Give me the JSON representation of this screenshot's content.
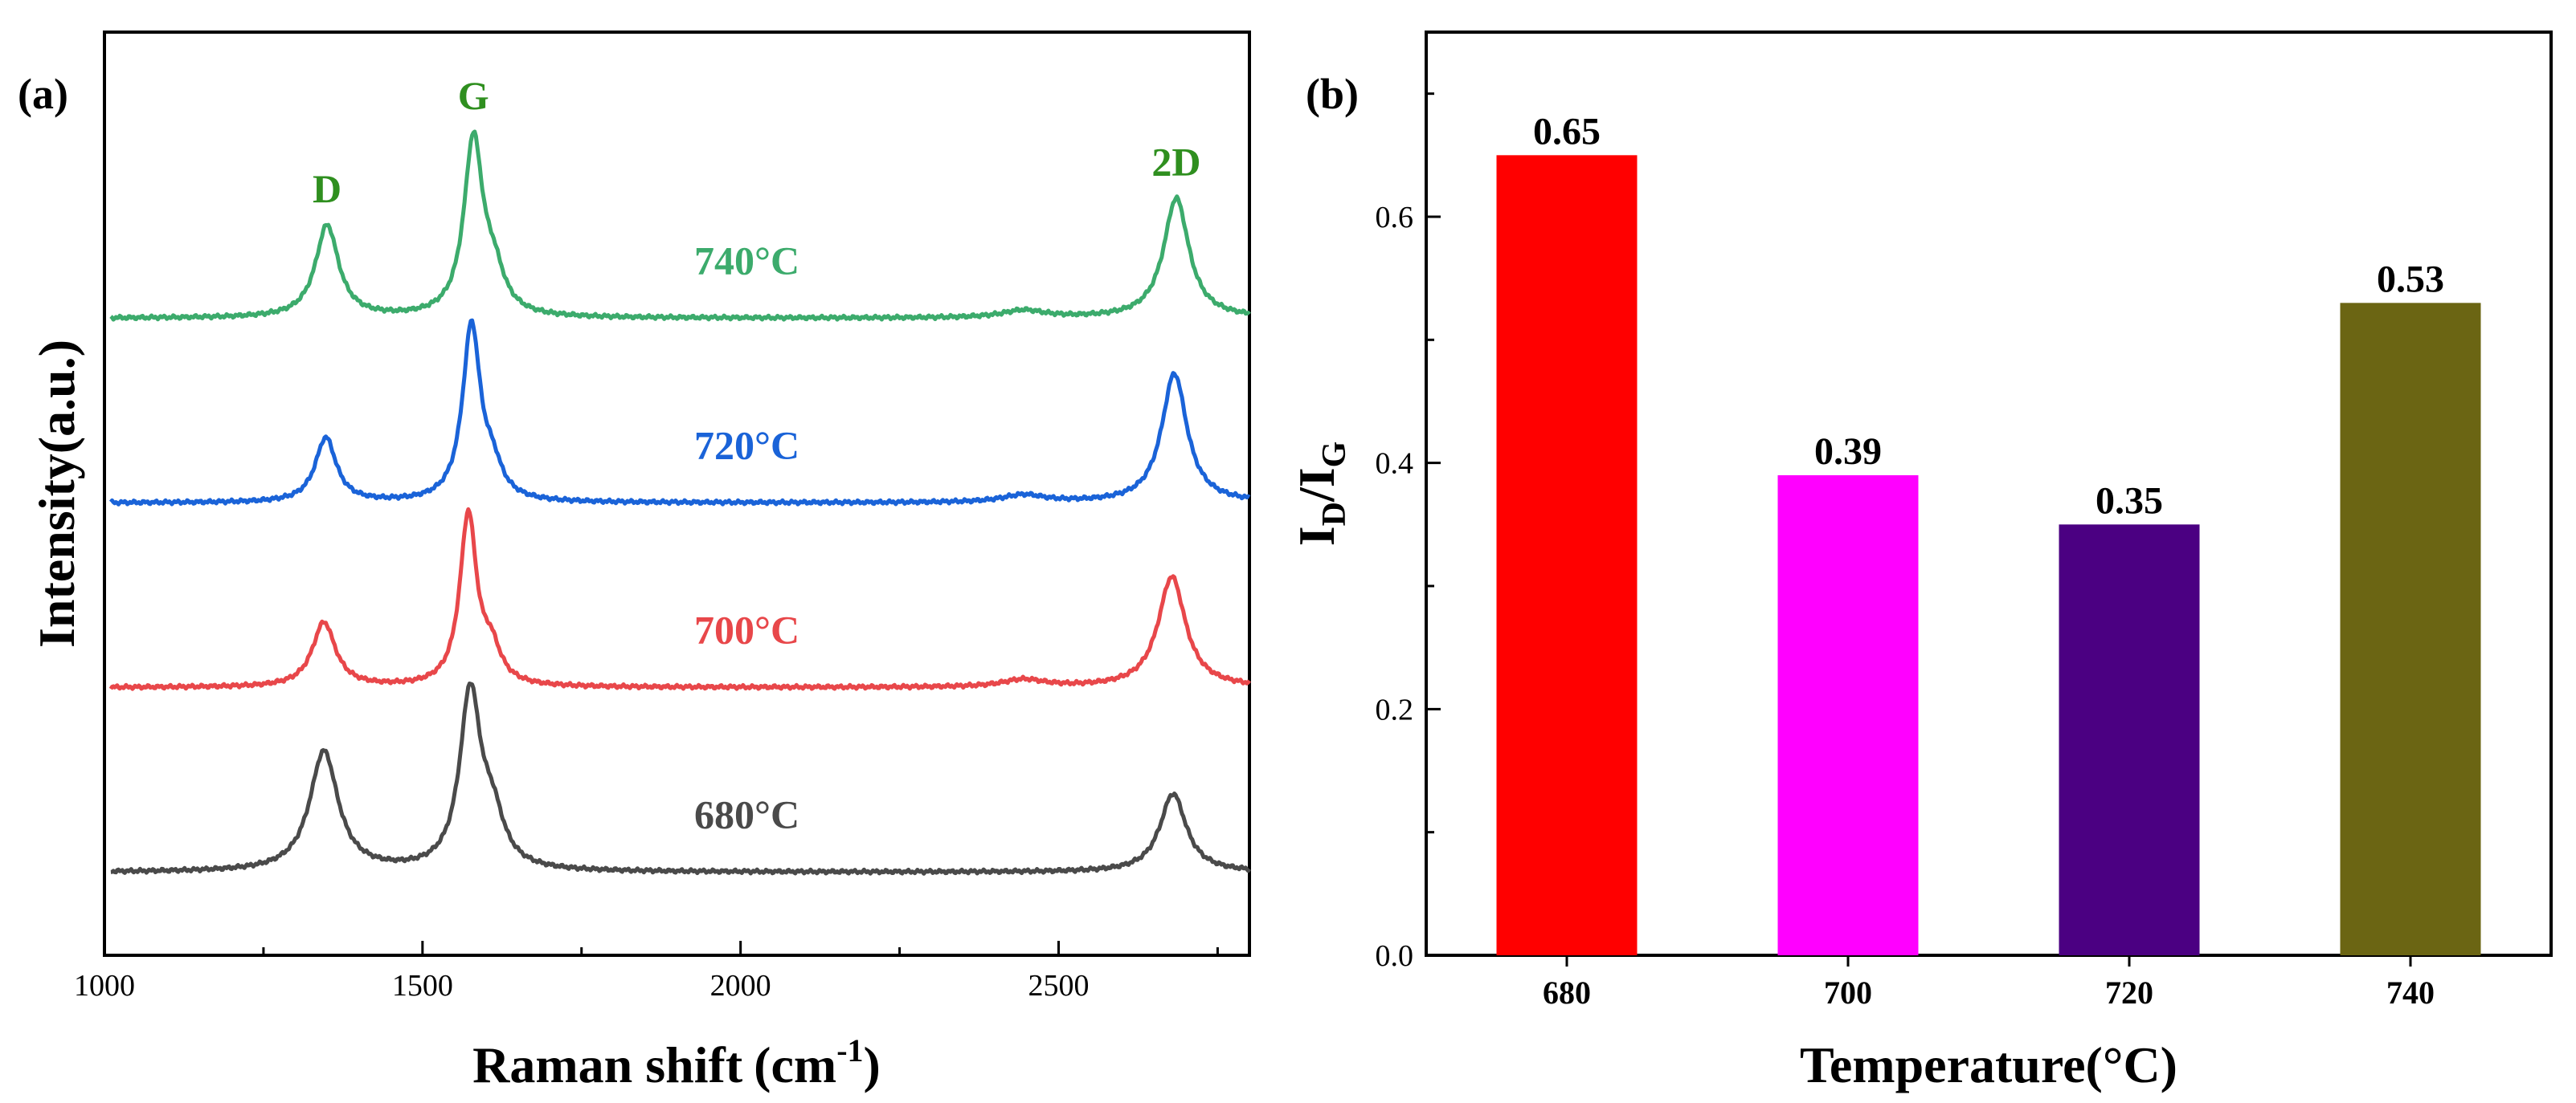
{
  "chart_data": [
    {
      "panel_label": "(a)",
      "type": "line",
      "xlabel": "Raman shift",
      "xlabel_unit_base": "(cm",
      "xlabel_unit_sup": "-1",
      "xlabel_unit_close": ")",
      "ylabel": "Intensity(a.u.)",
      "xlim": [
        1000,
        2800
      ],
      "xticks": [
        "1000",
        "1500",
        "2000",
        "2500"
      ],
      "y_ticks_shown": false,
      "peaks": [
        {
          "label": "D",
          "x": 1350
        },
        {
          "label": "G",
          "x": 1580
        },
        {
          "label": "2D",
          "x": 2685
        }
      ],
      "peak_label_color": "#2f8f1f",
      "series": [
        {
          "name": "680°C",
          "color": "#4a4a4a",
          "baseline": 0.09,
          "peaks": [
            {
              "x": 1345,
              "height": 0.13,
              "width": 27
            },
            {
              "x": 1575,
              "height": 0.19,
              "width": 20
            },
            {
              "x": 1610,
              "height": 0.05,
              "width": 22
            },
            {
              "x": 2680,
              "height": 0.085,
              "width": 25
            }
          ]
        },
        {
          "name": "700°C",
          "color": "#e8474a",
          "baseline": 0.29,
          "peaks": [
            {
              "x": 1345,
              "height": 0.07,
              "width": 22
            },
            {
              "x": 1572,
              "height": 0.185,
              "width": 16
            },
            {
              "x": 1608,
              "height": 0.035,
              "width": 18
            },
            {
              "x": 2678,
              "height": 0.12,
              "width": 26
            },
            {
              "x": 2445,
              "height": 0.008,
              "width": 40
            }
          ]
        },
        {
          "name": "720°C",
          "color": "#1a63d8",
          "baseline": 0.49,
          "peaks": [
            {
              "x": 1348,
              "height": 0.07,
              "width": 20
            },
            {
              "x": 1577,
              "height": 0.19,
              "width": 17
            },
            {
              "x": 1610,
              "height": 0.03,
              "width": 18
            },
            {
              "x": 2682,
              "height": 0.14,
              "width": 24
            },
            {
              "x": 2445,
              "height": 0.008,
              "width": 40
            }
          ]
        },
        {
          "name": "740°C",
          "color": "#3cab6c",
          "baseline": 0.69,
          "peaks": [
            {
              "x": 1350,
              "height": 0.1,
              "width": 22
            },
            {
              "x": 1580,
              "height": 0.19,
              "width": 18
            },
            {
              "x": 1612,
              "height": 0.04,
              "width": 20
            },
            {
              "x": 2685,
              "height": 0.13,
              "width": 24
            },
            {
              "x": 2445,
              "height": 0.008,
              "width": 40
            }
          ]
        }
      ]
    },
    {
      "panel_label": "(b)",
      "type": "bar",
      "xlabel": "Temperature(°C)",
      "ylabel_main": "I",
      "ylabel_sub_d": "D",
      "ylabel_slash": "/I",
      "ylabel_sub_g": "G",
      "ylim": [
        0.0,
        0.75
      ],
      "yticks": [
        "0.0",
        "0.2",
        "0.4",
        "0.6"
      ],
      "categories": [
        "680",
        "700",
        "720",
        "740"
      ],
      "values": [
        0.65,
        0.39,
        0.35,
        0.53
      ],
      "value_labels": [
        "0.65",
        "0.39",
        "0.35",
        "0.53"
      ],
      "colors": [
        "#ff0000",
        "#ff00ff",
        "#4b0082",
        "#6b6513"
      ]
    }
  ]
}
